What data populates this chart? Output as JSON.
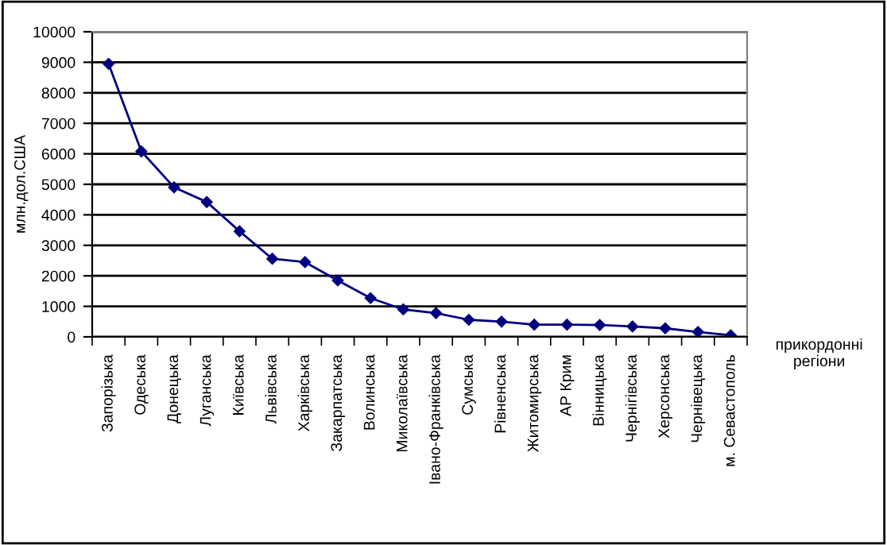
{
  "chart_data": {
    "type": "line",
    "xlabel": "прикордонні\nрегіони",
    "ylabel": "млн.дол.США",
    "categories": [
      "Запорізька",
      "Одеська",
      "Донецька",
      "Луганська",
      "Київська",
      "Львівська",
      "Харківська",
      "Закарпатська",
      "Волинська",
      "Миколаївська",
      "Івано-Франківська",
      "Сумська",
      "Рівненська",
      "Житомирська",
      "АР Крим",
      "Вінницька",
      "Чернігівська",
      "Херсонська",
      "Чернівецька",
      "м. Севастополь"
    ],
    "series": [
      {
        "color": "#000080",
        "values": [
          8950,
          6080,
          4900,
          4420,
          3460,
          2560,
          2450,
          1850,
          1270,
          900,
          780,
          560,
          500,
          400,
          400,
          390,
          340,
          280,
          160,
          50
        ]
      }
    ],
    "ylim": [
      0,
      10000
    ],
    "yticks": [
      0,
      1000,
      2000,
      3000,
      4000,
      5000,
      6000,
      7000,
      8000,
      9000,
      10000
    ],
    "grid": "y",
    "marker": "diamond",
    "line_style": "solid",
    "legend": false
  }
}
